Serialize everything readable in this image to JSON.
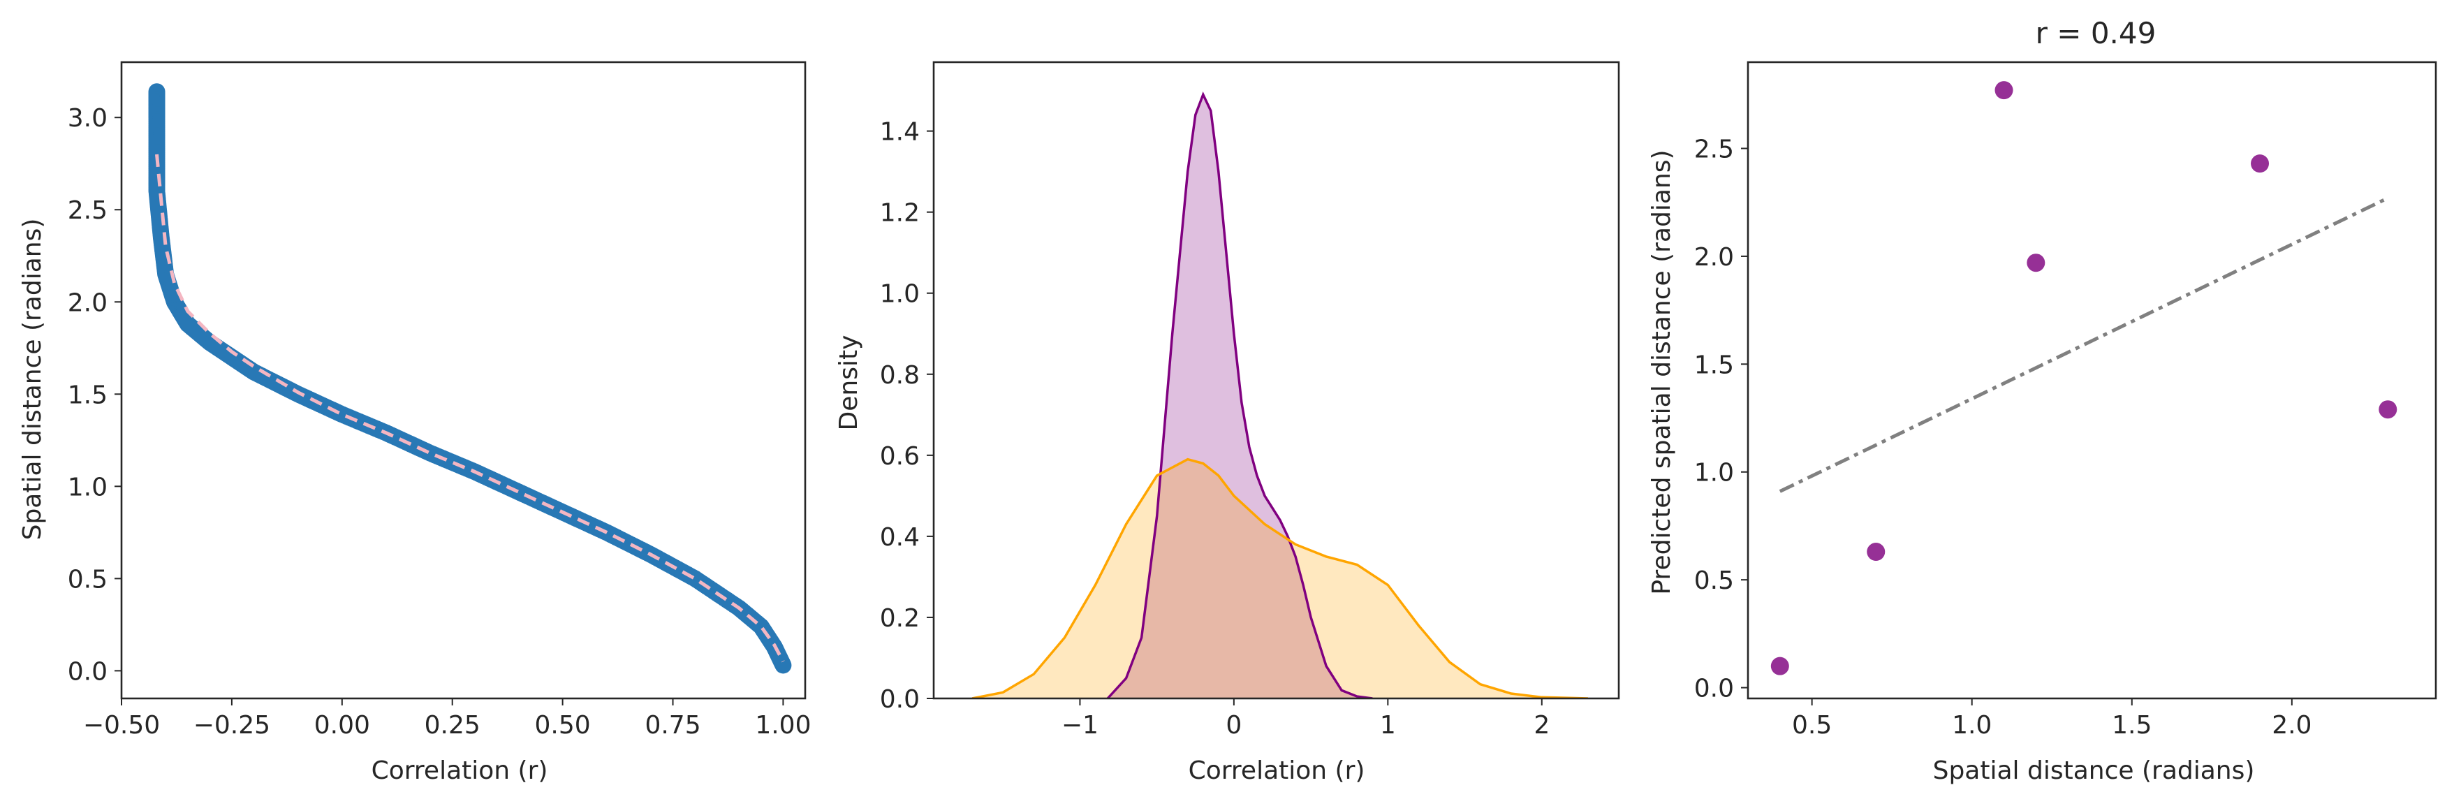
{
  "chart_data": [
    {
      "type": "scatter",
      "title": "",
      "xlabel": "Correlation (r)",
      "ylabel": "Spatial distance (radians)",
      "xlim": [
        -0.5,
        1.05
      ],
      "ylim": [
        -0.15,
        3.3
      ],
      "xticks": [
        "−0.50",
        "−0.25",
        "0.00",
        "0.25",
        "0.50",
        "0.75",
        "1.00"
      ],
      "yticks": [
        "0.0",
        "0.5",
        "1.0",
        "1.5",
        "2.0",
        "2.5",
        "3.0"
      ],
      "grid": false,
      "colors": {
        "points": "#2878b5",
        "fit": "#f4b6c2"
      },
      "series": [
        {
          "kind": "scatter-dense",
          "description": "arccos-like curve of dense points from r=-0.42 to r=1.0",
          "x": [
            -0.42,
            -0.42,
            -0.42,
            -0.42,
            -0.41,
            -0.4,
            -0.38,
            -0.35,
            -0.3,
            -0.25,
            -0.2,
            -0.1,
            0.0,
            0.1,
            0.2,
            0.3,
            0.4,
            0.5,
            0.6,
            0.7,
            0.8,
            0.9,
            0.95,
            0.98,
            1.0
          ],
          "y": [
            3.14,
            3.0,
            2.8,
            2.6,
            2.35,
            2.15,
            2.0,
            1.88,
            1.78,
            1.7,
            1.62,
            1.5,
            1.39,
            1.29,
            1.18,
            1.08,
            0.97,
            0.86,
            0.75,
            0.63,
            0.5,
            0.34,
            0.24,
            0.13,
            0.03
          ]
        },
        {
          "kind": "dashed-fit",
          "x": [
            -0.42,
            -0.41,
            -0.4,
            -0.38,
            -0.35,
            -0.3,
            -0.25,
            -0.2,
            -0.1,
            0.0,
            0.1,
            0.2,
            0.3,
            0.4,
            0.5,
            0.6,
            0.7,
            0.8,
            0.9,
            0.95,
            0.98,
            1.0
          ],
          "y": [
            2.8,
            2.55,
            2.3,
            2.1,
            1.95,
            1.83,
            1.73,
            1.65,
            1.51,
            1.39,
            1.29,
            1.18,
            1.08,
            0.97,
            0.86,
            0.75,
            0.63,
            0.5,
            0.34,
            0.24,
            0.14,
            0.05
          ]
        }
      ]
    },
    {
      "type": "area",
      "title": "",
      "xlabel": "Correlation (r)",
      "ylabel": "Density",
      "xlim": [
        -1.95,
        2.5
      ],
      "ylim": [
        0,
        1.57
      ],
      "xticks": [
        "−1",
        "0",
        "1",
        "2"
      ],
      "yticks": [
        "0.0",
        "0.2",
        "0.4",
        "0.6",
        "0.8",
        "1.0",
        "1.2",
        "1.4"
      ],
      "grid": false,
      "series": [
        {
          "color": "#800080",
          "fill": "#dfbfdf",
          "x": [
            -0.82,
            -0.7,
            -0.6,
            -0.5,
            -0.4,
            -0.3,
            -0.25,
            -0.2,
            -0.15,
            -0.1,
            -0.05,
            0.0,
            0.05,
            0.1,
            0.15,
            0.2,
            0.25,
            0.3,
            0.35,
            0.4,
            0.45,
            0.5,
            0.6,
            0.7,
            0.8,
            0.9
          ],
          "y": [
            0.0,
            0.05,
            0.15,
            0.45,
            0.9,
            1.3,
            1.44,
            1.49,
            1.45,
            1.3,
            1.1,
            0.9,
            0.73,
            0.62,
            0.55,
            0.5,
            0.47,
            0.44,
            0.4,
            0.35,
            0.28,
            0.2,
            0.08,
            0.02,
            0.005,
            0.0
          ]
        },
        {
          "color": "#ffa500",
          "fill": "#fde3b6",
          "x": [
            -1.7,
            -1.5,
            -1.3,
            -1.1,
            -0.9,
            -0.7,
            -0.5,
            -0.3,
            -0.2,
            -0.1,
            0.0,
            0.2,
            0.4,
            0.6,
            0.8,
            1.0,
            1.2,
            1.4,
            1.6,
            1.8,
            2.0,
            2.2,
            2.3
          ],
          "y": [
            0.0,
            0.015,
            0.06,
            0.15,
            0.28,
            0.43,
            0.55,
            0.59,
            0.58,
            0.55,
            0.5,
            0.43,
            0.38,
            0.35,
            0.33,
            0.28,
            0.18,
            0.09,
            0.035,
            0.012,
            0.003,
            0.001,
            0.0
          ]
        }
      ]
    },
    {
      "type": "scatter",
      "title": "r = 0.49",
      "xlabel": "Spatial distance (radians)",
      "ylabel": "Predicted spatial distance (radians)",
      "xlim": [
        0.3,
        2.45
      ],
      "ylim": [
        -0.05,
        2.9
      ],
      "xticks": [
        "0.5",
        "1.0",
        "1.5",
        "2.0"
      ],
      "yticks": [
        "0.0",
        "0.5",
        "1.0",
        "1.5",
        "2.0",
        "2.5"
      ],
      "grid": false,
      "points": {
        "color": "#8b1a8b",
        "x": [
          0.4,
          0.7,
          1.1,
          1.2,
          1.9,
          2.3
        ],
        "y": [
          0.1,
          0.63,
          2.77,
          1.97,
          2.43,
          1.29
        ]
      },
      "fit": {
        "color": "#808080",
        "x": [
          0.4,
          2.3
        ],
        "y": [
          0.91,
          2.27
        ]
      }
    }
  ]
}
